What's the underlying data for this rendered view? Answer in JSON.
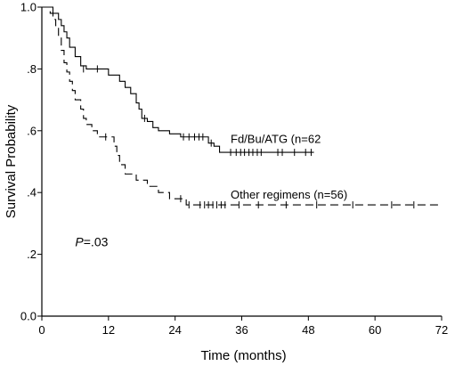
{
  "chart_data": {
    "type": "line",
    "subtype": "kaplan-meier step",
    "xlabel": "Time (months)",
    "ylabel": "Survival Probability",
    "xlim": [
      0,
      72
    ],
    "ylim": [
      0,
      1
    ],
    "x_ticks": [
      0,
      12,
      24,
      36,
      48,
      60,
      72
    ],
    "x_tick_labels": [
      "0",
      "12",
      "24",
      "36",
      "48",
      "60",
      "72"
    ],
    "y_ticks": [
      0,
      0.2,
      0.4,
      0.6,
      0.8,
      1.0
    ],
    "y_tick_labels": [
      "0.0",
      ".2",
      ".4",
      ".6",
      ".8",
      "1.0"
    ],
    "grid": false,
    "annotation": {
      "prefix": "P",
      "text": "=.03",
      "x": 6,
      "y": 0.24
    },
    "series": [
      {
        "name": "Fd/Bu/ATG (n=62",
        "line_style": "solid",
        "label_x": 34,
        "label_y": 0.575,
        "steps": [
          [
            0,
            1.0
          ],
          [
            2,
            0.98
          ],
          [
            3,
            0.96
          ],
          [
            3.5,
            0.94
          ],
          [
            4,
            0.92
          ],
          [
            4.5,
            0.9
          ],
          [
            5,
            0.87
          ],
          [
            6,
            0.84
          ],
          [
            7,
            0.81
          ],
          [
            8,
            0.8
          ],
          [
            12,
            0.78
          ],
          [
            14,
            0.76
          ],
          [
            15,
            0.74
          ],
          [
            16,
            0.72
          ],
          [
            17,
            0.69
          ],
          [
            17.5,
            0.67
          ],
          [
            18,
            0.64
          ],
          [
            19,
            0.63
          ],
          [
            20,
            0.61
          ],
          [
            21,
            0.6
          ],
          [
            23,
            0.59
          ],
          [
            25,
            0.58
          ],
          [
            30,
            0.56
          ],
          [
            31,
            0.55
          ],
          [
            32,
            0.53
          ],
          [
            49,
            0.53
          ]
        ],
        "censored": [
          [
            7.5,
            0.8
          ],
          [
            10,
            0.8
          ],
          [
            18.5,
            0.64
          ],
          [
            25.5,
            0.58
          ],
          [
            26.5,
            0.58
          ],
          [
            27.5,
            0.58
          ],
          [
            28.3,
            0.58
          ],
          [
            29,
            0.58
          ],
          [
            30.5,
            0.56
          ],
          [
            34,
            0.53
          ],
          [
            35,
            0.53
          ],
          [
            35.8,
            0.53
          ],
          [
            36.5,
            0.53
          ],
          [
            37.3,
            0.53
          ],
          [
            38,
            0.53
          ],
          [
            38.8,
            0.53
          ],
          [
            39.5,
            0.53
          ],
          [
            42.5,
            0.53
          ],
          [
            43.3,
            0.53
          ],
          [
            45.5,
            0.53
          ],
          [
            47.5,
            0.53
          ],
          [
            48.5,
            0.53
          ]
        ]
      },
      {
        "name": "Other regimens (n=56)",
        "line_style": "dashed",
        "label_x": 34,
        "label_y": 0.395,
        "steps": [
          [
            0,
            1.0
          ],
          [
            1.5,
            0.98
          ],
          [
            2,
            0.96
          ],
          [
            2.5,
            0.94
          ],
          [
            3,
            0.9
          ],
          [
            3.5,
            0.86
          ],
          [
            4,
            0.82
          ],
          [
            4.5,
            0.79
          ],
          [
            5,
            0.76
          ],
          [
            5.5,
            0.73
          ],
          [
            6,
            0.7
          ],
          [
            7,
            0.67
          ],
          [
            7.5,
            0.64
          ],
          [
            8,
            0.62
          ],
          [
            9,
            0.6
          ],
          [
            10,
            0.58
          ],
          [
            13,
            0.55
          ],
          [
            13.5,
            0.52
          ],
          [
            14,
            0.49
          ],
          [
            15,
            0.46
          ],
          [
            17,
            0.44
          ],
          [
            19,
            0.42
          ],
          [
            21,
            0.4
          ],
          [
            23,
            0.38
          ],
          [
            26,
            0.36
          ],
          [
            72,
            0.36
          ]
        ],
        "censored": [
          [
            11.5,
            0.58
          ],
          [
            25,
            0.38
          ],
          [
            26.5,
            0.36
          ],
          [
            28.5,
            0.36
          ],
          [
            29.3,
            0.36
          ],
          [
            30,
            0.36
          ],
          [
            30.8,
            0.36
          ],
          [
            31.5,
            0.36
          ],
          [
            32.3,
            0.36
          ],
          [
            33,
            0.36
          ],
          [
            35.5,
            0.36
          ],
          [
            39,
            0.36
          ],
          [
            44,
            0.36
          ],
          [
            49.5,
            0.36
          ],
          [
            56,
            0.36
          ],
          [
            63,
            0.36
          ],
          [
            67,
            0.36
          ]
        ]
      }
    ]
  }
}
